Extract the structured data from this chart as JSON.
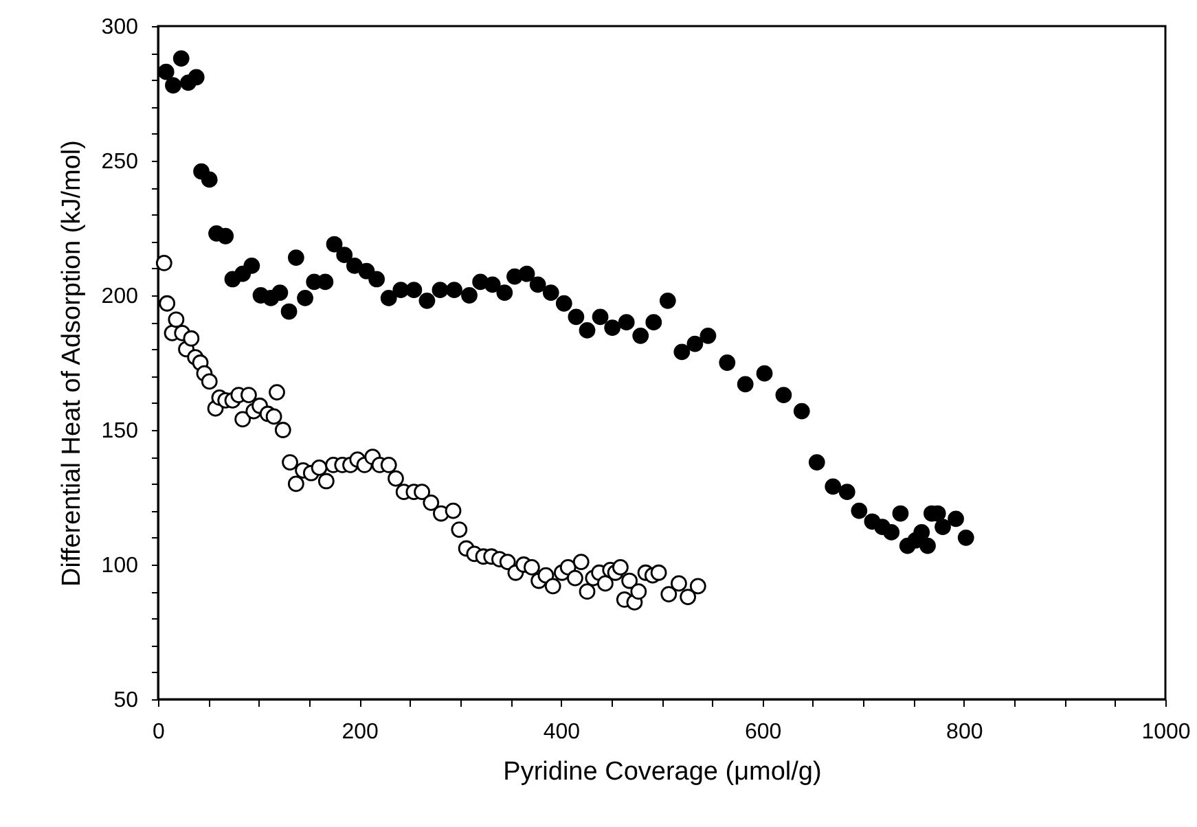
{
  "chart_data": {
    "type": "scatter",
    "xlabel": "Pyridine Coverage (μmol/g)",
    "ylabel": "Differential Heat of Adsorption (kJ/mol)",
    "xlim": [
      0,
      1000
    ],
    "ylim": [
      50,
      300
    ],
    "xticks": [
      0,
      {
        "value": 50,
        "label": null
      },
      {
        "value": 100,
        "label": null
      },
      {
        "value": 150,
        "label": null
      },
      200,
      {
        "value": 250,
        "label": null
      },
      {
        "value": 300,
        "label": null
      },
      {
        "value": 350,
        "label": null
      },
      400,
      {
        "value": 450,
        "label": null
      },
      {
        "value": 500,
        "label": null
      },
      {
        "value": 550,
        "label": null
      },
      600,
      {
        "value": 650,
        "label": null
      },
      {
        "value": 700,
        "label": null
      },
      {
        "value": 750,
        "label": null
      },
      800,
      {
        "value": 850,
        "label": null
      },
      {
        "value": 900,
        "label": null
      },
      {
        "value": 950,
        "label": null
      },
      1000
    ],
    "yticks": [
      50,
      {
        "value": 60,
        "label": null
      },
      {
        "value": 70,
        "label": null
      },
      {
        "value": 80,
        "label": null
      },
      {
        "value": 90,
        "label": null
      },
      100,
      {
        "value": 110,
        "label": null
      },
      {
        "value": 120,
        "label": null
      },
      {
        "value": 130,
        "label": null
      },
      {
        "value": 140,
        "label": null
      },
      150,
      {
        "value": 160,
        "label": null
      },
      {
        "value": 170,
        "label": null
      },
      {
        "value": 180,
        "label": null
      },
      {
        "value": 190,
        "label": null
      },
      200,
      {
        "value": 210,
        "label": null
      },
      {
        "value": 220,
        "label": null
      },
      {
        "value": 230,
        "label": null
      },
      {
        "value": 240,
        "label": null
      },
      250,
      {
        "value": 260,
        "label": null
      },
      {
        "value": 270,
        "label": null
      },
      {
        "value": 280,
        "label": null
      },
      {
        "value": 290,
        "label": null
      },
      300
    ],
    "marker": "circle",
    "series": [
      {
        "color": "#000000",
        "x": [
          8,
          15,
          23,
          30,
          38,
          43,
          51,
          58,
          67,
          74,
          84,
          93,
          102,
          112,
          121,
          130,
          137,
          146,
          155,
          166,
          175,
          185,
          195,
          207,
          217,
          229,
          241,
          254,
          267,
          280,
          294,
          309,
          320,
          332,
          344,
          354,
          366,
          377,
          390,
          403,
          415,
          426,
          439,
          451,
          465,
          479,
          492,
          506,
          520,
          533,
          546,
          565,
          583,
          602,
          621,
          639,
          654,
          670,
          684,
          696,
          709,
          719,
          728,
          737,
          744,
          752,
          758,
          764,
          768,
          774,
          779,
          792,
          802
        ],
        "values": [
          283,
          278,
          288,
          279,
          281,
          246,
          243,
          223,
          222,
          206,
          208,
          211,
          200,
          199,
          201,
          194,
          214,
          199,
          205,
          205,
          219,
          215,
          211,
          209,
          206,
          199,
          202,
          202,
          198,
          202,
          202,
          200,
          205,
          204,
          201,
          207,
          208,
          204,
          201,
          197,
          192,
          187,
          192,
          188,
          190,
          185,
          190,
          198,
          179,
          182,
          185,
          175,
          167,
          171,
          163,
          157,
          138,
          129,
          127,
          120,
          116,
          114,
          112,
          119,
          107,
          109,
          112,
          107,
          119,
          119,
          114,
          117,
          110
        ]
      },
      {
        "color": "#000000",
        "x": [
          6,
          9,
          14,
          18,
          24,
          28,
          33,
          37,
          42,
          46,
          51,
          57,
          61,
          67,
          74,
          80,
          84,
          90,
          95,
          101,
          109,
          115,
          118,
          124,
          131,
          137,
          144,
          152,
          160,
          167,
          174,
          183,
          191,
          198,
          205,
          213,
          220,
          229,
          236,
          244,
          254,
          262,
          271,
          281,
          293,
          299,
          306,
          314,
          323,
          331,
          339,
          347,
          355,
          363,
          371,
          378,
          385,
          392,
          401,
          407,
          414,
          420,
          426,
          432,
          438,
          444,
          449,
          454,
          459,
          463,
          468,
          473,
          477,
          484,
          491,
          497,
          507,
          517,
          526,
          536
        ],
        "values": [
          212,
          197,
          186,
          191,
          186,
          180,
          184,
          177,
          175,
          171,
          168,
          158,
          162,
          161,
          161,
          163,
          154,
          163,
          157,
          159,
          156,
          155,
          164,
          150,
          138,
          130,
          135,
          134,
          136,
          131,
          137,
          137,
          137,
          139,
          137,
          140,
          137,
          137,
          132,
          127,
          127,
          127,
          123,
          119,
          120,
          113,
          106,
          104,
          103,
          103,
          102,
          101,
          97,
          100,
          99,
          94,
          96,
          92,
          97,
          99,
          95,
          101,
          90,
          95,
          97,
          93,
          98,
          97,
          99,
          87,
          94,
          86,
          90,
          97,
          96,
          97,
          89,
          93,
          88,
          92
        ]
      }
    ]
  }
}
